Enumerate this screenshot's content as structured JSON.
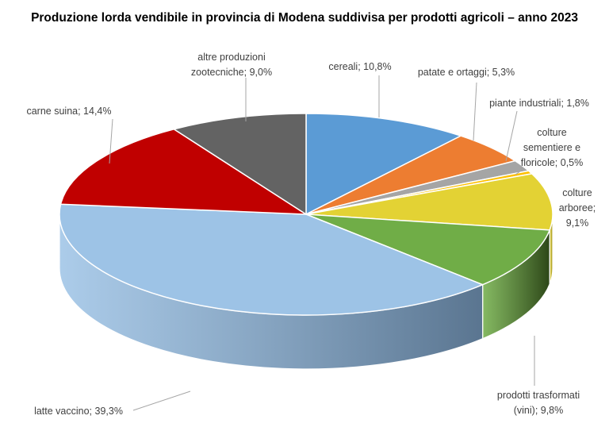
{
  "chart_data": {
    "type": "pie",
    "title": "Produzione lorda vendibile in provincia di Modena suddivisa per prodotti agricoli – anno 2023",
    "slices": [
      {
        "name": "cereali",
        "value": 10.8,
        "label": [
          "cereali; 10,8%"
        ],
        "color": "#5b9bd5",
        "side": "#3d6e9c"
      },
      {
        "name": "patate e ortaggi",
        "value": 5.3,
        "label": [
          "patate e ortaggi; 5,3%"
        ],
        "color": "#ed7d31",
        "side": "#a9561f"
      },
      {
        "name": "piante industriali",
        "value": 1.8,
        "label": [
          "piante industriali; 1,8%"
        ],
        "color": "#a5a5a5",
        "side": "#6e6e6e"
      },
      {
        "name": "colture sementiere e floricole",
        "value": 0.5,
        "label": [
          "colture",
          "sementiere e",
          "floricole; 0,5%"
        ],
        "color": "#ffc000",
        "side": "#b38600"
      },
      {
        "name": "colture arboree",
        "value": 9.1,
        "label": [
          "colture",
          "arboree;",
          "9,1%"
        ],
        "color": "#e3d234",
        "side": "#9d9122"
      },
      {
        "name": "prodotti trasformati (vini)",
        "value": 9.8,
        "label": [
          "prodotti trasformati",
          "(vini); 9,8%"
        ],
        "color": "#70ad47",
        "side": "#2d4718"
      },
      {
        "name": "latte vaccino",
        "value": 39.3,
        "label": [
          "latte vaccino; 39,3%"
        ],
        "color": "#9dc3e6",
        "side": "#5a7590"
      },
      {
        "name": "carne suina",
        "value": 14.4,
        "label": [
          "carne suina; 14,4%"
        ],
        "color": "#c00000",
        "side": "#800000"
      },
      {
        "name": "altre produzioni zootecniche",
        "value": 9.0,
        "label": [
          "altre produzioni",
          "zootecniche; 9,0%"
        ],
        "color": "#636363",
        "side": "#3a3a3a"
      }
    ],
    "legend": "none"
  }
}
